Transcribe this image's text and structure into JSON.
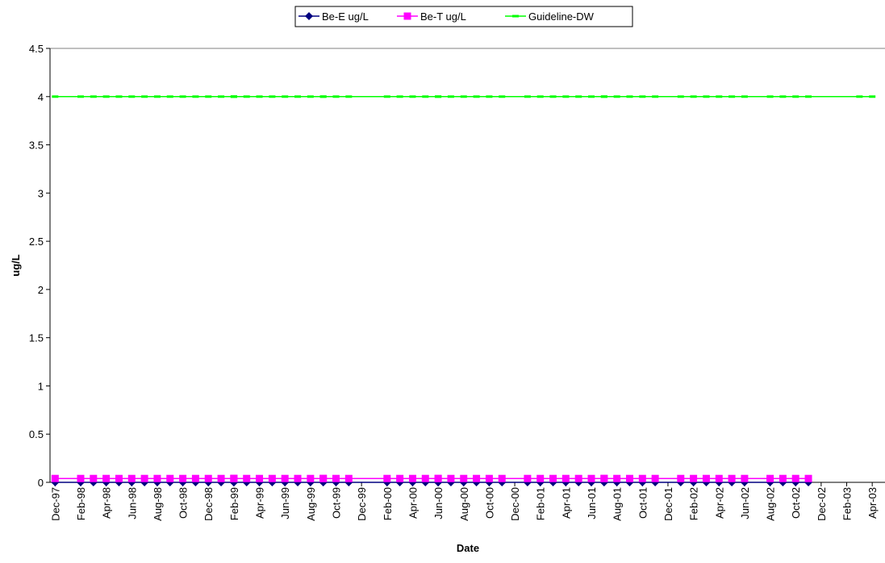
{
  "chart_data": {
    "type": "line",
    "x_label": "Date",
    "y_label": "ug/L",
    "x": [
      "1997-12",
      "1998-02",
      "1998-03",
      "1998-04",
      "1998-05",
      "1998-06",
      "1998-07",
      "1998-08",
      "1998-09",
      "1998-10",
      "1998-11",
      "1998-12",
      "1999-01",
      "1999-02",
      "1999-02",
      "1999-02",
      "1999-03",
      "1999-04",
      "1999-05",
      "1999-06",
      "1999-07",
      "1999-08",
      "1999-09",
      "1999-09",
      "1999-10",
      "1999-11",
      "2000-02",
      "2000-03",
      "2000-04",
      "2000-05",
      "2000-06",
      "2000-06",
      "2000-07",
      "2000-08",
      "2000-09",
      "2000-10",
      "2000-11",
      "2001-01",
      "2001-02",
      "2001-03",
      "2001-04",
      "2001-05",
      "2001-06",
      "2001-07",
      "2001-07",
      "2001-08",
      "2001-09",
      "2001-10",
      "2001-11",
      "2002-01",
      "2002-02",
      "2002-03",
      "2002-04",
      "2002-05",
      "2002-06",
      "2002-08",
      "2002-09",
      "2002-10",
      "2002-11",
      "2003-03",
      "2003-04"
    ],
    "series": [
      {
        "name": "Be-E ug/L",
        "color": "#000080",
        "marker": "diamond",
        "values": [
          0,
          0,
          0,
          0,
          0,
          0,
          0,
          0,
          0,
          0,
          0,
          0,
          0,
          0,
          0,
          0,
          0,
          0,
          0,
          0,
          0,
          0,
          0,
          0,
          0,
          0,
          0,
          0,
          0,
          0,
          0,
          0,
          0,
          0,
          0,
          0,
          0,
          0,
          0,
          0,
          0,
          0,
          0,
          0,
          0,
          0,
          0,
          0,
          0,
          0,
          0,
          0,
          0,
          0,
          0,
          0,
          0,
          0,
          0,
          null,
          null
        ]
      },
      {
        "name": "Be-T ug/L",
        "color": "#ff00ff",
        "marker": "square",
        "values": [
          0.04,
          0.04,
          0.04,
          0.04,
          0.04,
          0.04,
          0.04,
          0.04,
          0.04,
          0.04,
          0.04,
          0.04,
          0.04,
          0.04,
          0.04,
          0.04,
          0.04,
          0.04,
          0.04,
          0.04,
          0.04,
          0.04,
          0.04,
          0.04,
          0.04,
          0.04,
          0.04,
          0.04,
          0.04,
          0.04,
          0.04,
          0.04,
          0.04,
          0.04,
          0.04,
          0.04,
          0.04,
          0.04,
          0.04,
          0.04,
          0.04,
          0.04,
          0.04,
          0.04,
          0.04,
          0.04,
          0.04,
          0.04,
          0.04,
          0.04,
          0.04,
          0.04,
          0.04,
          0.04,
          0.04,
          0.04,
          0.04,
          0.04,
          0.04,
          null,
          null
        ]
      },
      {
        "name": "Guideline-DW",
        "color": "#00ff00",
        "marker": "dash",
        "values": [
          4,
          4,
          4,
          4,
          4,
          4,
          4,
          4,
          4,
          4,
          4,
          4,
          4,
          4,
          4,
          4,
          4,
          4,
          4,
          4,
          4,
          4,
          4,
          4,
          4,
          4,
          4,
          4,
          4,
          4,
          4,
          4,
          4,
          4,
          4,
          4,
          4,
          4,
          4,
          4,
          4,
          4,
          4,
          4,
          4,
          4,
          4,
          4,
          4,
          4,
          4,
          4,
          4,
          4,
          4,
          4,
          4,
          4,
          4,
          4,
          4
        ]
      }
    ],
    "xlim": [
      "1997-12",
      "2003-05"
    ],
    "xticks": [
      {
        "value": "1997-12",
        "label": "Dec-97"
      },
      {
        "value": "1998-02",
        "label": "Feb-98"
      },
      {
        "value": "1998-04",
        "label": "Apr-98"
      },
      {
        "value": "1998-06",
        "label": "Jun-98"
      },
      {
        "value": "1998-08",
        "label": "Aug-98"
      },
      {
        "value": "1998-10",
        "label": "Oct-98"
      },
      {
        "value": "1998-12",
        "label": "Dec-98"
      },
      {
        "value": "1999-02",
        "label": "Feb-99"
      },
      {
        "value": "1999-04",
        "label": "Apr-99"
      },
      {
        "value": "1999-06",
        "label": "Jun-99"
      },
      {
        "value": "1999-08",
        "label": "Aug-99"
      },
      {
        "value": "1999-10",
        "label": "Oct-99"
      },
      {
        "value": "1999-12",
        "label": "Dec-99"
      },
      {
        "value": "2000-02",
        "label": "Feb-00"
      },
      {
        "value": "2000-04",
        "label": "Apr-00"
      },
      {
        "value": "2000-06",
        "label": "Jun-00"
      },
      {
        "value": "2000-08",
        "label": "Aug-00"
      },
      {
        "value": "2000-10",
        "label": "Oct-00"
      },
      {
        "value": "2000-12",
        "label": "Dec-00"
      },
      {
        "value": "2001-02",
        "label": "Feb-01"
      },
      {
        "value": "2001-04",
        "label": "Apr-01"
      },
      {
        "value": "2001-06",
        "label": "Jun-01"
      },
      {
        "value": "2001-08",
        "label": "Aug-01"
      },
      {
        "value": "2001-10",
        "label": "Oct-01"
      },
      {
        "value": "2001-12",
        "label": "Dec-01"
      },
      {
        "value": "2002-02",
        "label": "Feb-02"
      },
      {
        "value": "2002-04",
        "label": "Apr-02"
      },
      {
        "value": "2002-06",
        "label": "Jun-02"
      },
      {
        "value": "2002-08",
        "label": "Aug-02"
      },
      {
        "value": "2002-10",
        "label": "Oct-02"
      },
      {
        "value": "2002-12",
        "label": "Dec-02"
      },
      {
        "value": "2003-02",
        "label": "Feb-03"
      },
      {
        "value": "2003-04",
        "label": "Apr-03"
      }
    ],
    "ylim": [
      0,
      4.5
    ],
    "yticks": [
      0,
      0.5,
      1,
      1.5,
      2,
      2.5,
      3,
      3.5,
      4,
      4.5
    ],
    "grid": false,
    "legend": "top"
  }
}
